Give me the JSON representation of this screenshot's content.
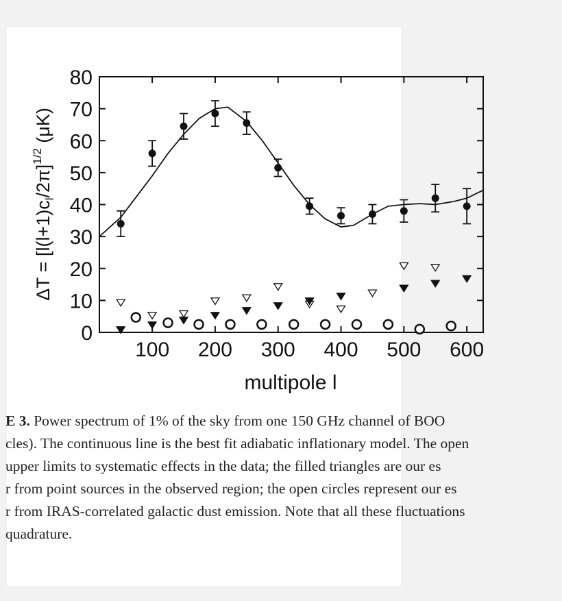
{
  "chart_data": {
    "type": "scatter",
    "xlabel": "multipole l",
    "ylabel": [
      "ΔT = [l(l+1)c",
      "l",
      "/2π]",
      "1/2",
      " (μK)"
    ],
    "xlim": [
      16,
      626
    ],
    "ylim": [
      0,
      80
    ],
    "xticks": [
      100,
      200,
      300,
      400,
      500,
      600
    ],
    "yticks": [
      0,
      10,
      20,
      30,
      40,
      50,
      60,
      70,
      80
    ],
    "series": [
      {
        "marker": "circle-filled",
        "color": "#111111",
        "x": [
          50,
          100,
          150,
          200,
          250,
          300,
          350,
          400,
          450,
          500,
          550,
          600
        ],
        "values": [
          34,
          56,
          64.5,
          68.5,
          65.5,
          51.5,
          39.5,
          36.5,
          37,
          38,
          42,
          39.5
        ],
        "errors": [
          4,
          4,
          4,
          4,
          3.5,
          2.7,
          2.5,
          2.5,
          3,
          3.5,
          4.3,
          5.5
        ]
      },
      {
        "marker": "triangle-open",
        "color": "#111111",
        "x": [
          50,
          100,
          150,
          200,
          250,
          300,
          350,
          400,
          450,
          500,
          550
        ],
        "values": [
          9.5,
          5.5,
          6,
          10,
          11,
          14.5,
          9,
          7.5,
          12.5,
          21,
          20.5
        ]
      },
      {
        "marker": "triangle-filled",
        "color": "#111111",
        "x": [
          50,
          100,
          150,
          200,
          250,
          300,
          350,
          400,
          500,
          550,
          600
        ],
        "values": [
          1,
          2.5,
          4,
          5.5,
          7,
          8.5,
          10,
          11.5,
          14,
          15.5,
          17
        ]
      },
      {
        "marker": "circle-open",
        "color": "#111111",
        "x": [
          74,
          125,
          174,
          224,
          274,
          325,
          375,
          425,
          475,
          525,
          575
        ],
        "values": [
          4.7,
          3,
          2.5,
          2.5,
          2.5,
          2.5,
          2.5,
          2.5,
          2.5,
          1,
          2
        ]
      },
      {
        "marker": "line",
        "color": "#111111",
        "x": [
          16,
          50,
          100,
          125,
          150,
          175,
          200,
          220,
          250,
          275,
          300,
          325,
          350,
          375,
          400,
          420,
          450,
          475,
          500,
          525,
          550,
          580,
          600,
          626
        ],
        "values": [
          30,
          36,
          49,
          56,
          62,
          67,
          70,
          70.5,
          66,
          60,
          53,
          46,
          40,
          35.5,
          33,
          33.5,
          37,
          39.5,
          40,
          40.3,
          40,
          41,
          42,
          44.5
        ]
      }
    ]
  },
  "caption": {
    "label": "E 3.",
    "lines": [
      " Power spectrum of 1% of the sky from one 150 GHz channel of BOO",
      "cles). The continuous line is the best fit adiabatic inflationary model. The open",
      " upper limits to systematic effects in the data; the filled triangles are our es",
      "r from point sources in the observed region; the open circles represent our es",
      "r from IRAS-correlated galactic dust emission. Note that all these fluctuations",
      " quadrature."
    ]
  }
}
